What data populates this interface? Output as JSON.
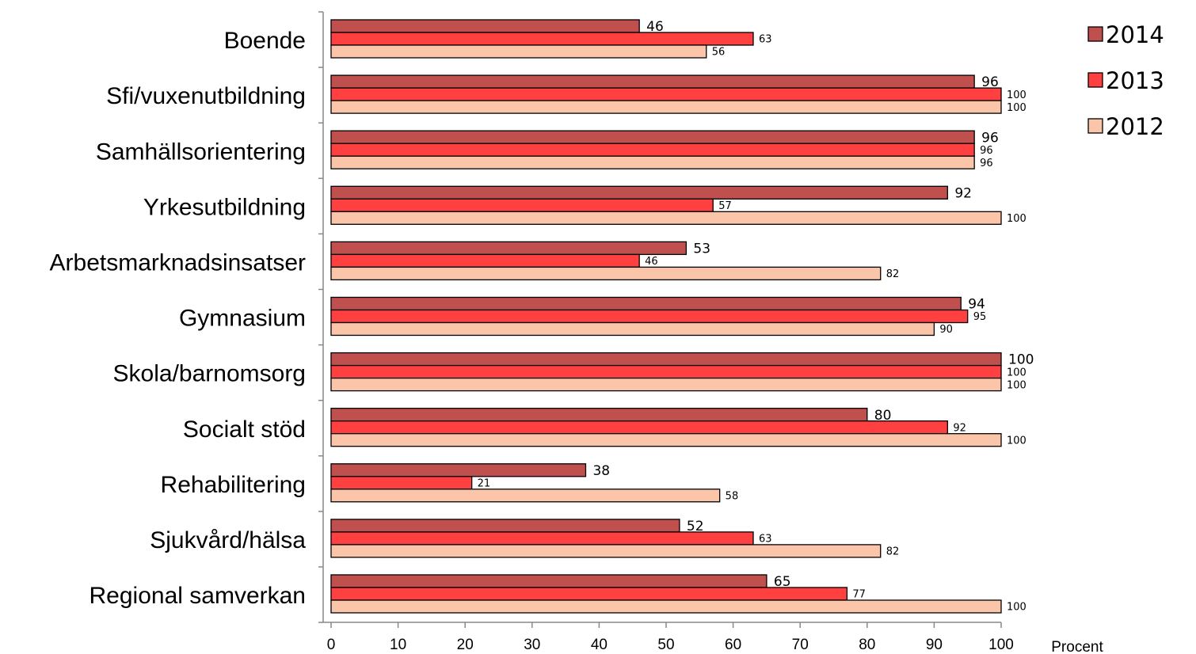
{
  "chart_data": {
    "type": "bar",
    "orientation": "horizontal",
    "categories": [
      "Boende",
      "Sfi/vuxenutbildning",
      "Samhällsorientering",
      "Yrkesutbildning",
      "Arbetsmarknadsinsatser",
      "Gymnasium",
      "Skola/barnomsorg",
      "Socialt stöd",
      "Rehabilitering",
      "Sjukvård/hälsa",
      "Regional samverkan"
    ],
    "series": [
      {
        "name": "2014",
        "color": "#c0504d",
        "values": [
          46,
          96,
          96,
          92,
          53,
          94,
          100,
          80,
          38,
          52,
          65
        ]
      },
      {
        "name": "2013",
        "color": "#ff4040",
        "values": [
          63,
          100,
          96,
          57,
          46,
          95,
          100,
          92,
          21,
          63,
          77
        ]
      },
      {
        "name": "2012",
        "color": "#fac5a8",
        "values": [
          56,
          100,
          96,
          100,
          82,
          90,
          100,
          100,
          58,
          82,
          100
        ]
      }
    ],
    "xlim": [
      0,
      100
    ],
    "xticks": [
      0,
      10,
      20,
      30,
      40,
      50,
      60,
      70,
      80,
      90,
      100
    ],
    "xlabel": "Procent",
    "ylabel": "",
    "title": "",
    "legend": "right",
    "grid": false
  }
}
